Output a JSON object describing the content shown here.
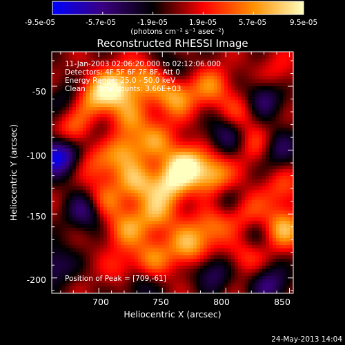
{
  "chart_data": {
    "type": "heatmap",
    "title": "Reconstructed RHESSI Image",
    "xlabel": "Heliocentric X (arcsec)",
    "ylabel": "Heliocentric Y (arcsec)",
    "xlim": [
      663,
      853
    ],
    "ylim": [
      -212,
      -23
    ],
    "x_ticks": [
      700,
      750,
      800,
      850
    ],
    "y_ticks": [
      -50,
      -100,
      -150,
      -200
    ],
    "colorbar": {
      "min": -9.5e-05,
      "max": 9.5e-05,
      "tick_labels": [
        "-9.5e-05",
        "-5.7e-05",
        "-1.9e-05",
        "1.9e-05",
        "5.7e-05",
        "9.5e-05"
      ],
      "unit_label": "(photons cm⁻² s⁻¹ asec⁻²)"
    },
    "annotations": [
      "11-Jan-2003 02:06:20.000 to 02:12:06.000",
      "Detectors: 4F 5F 6F 7F 8F, Att 0",
      "Energy Range: 25.0 - 50.0 keV",
      "Clean     Total counts: 3.66E+03"
    ],
    "peak_label": "Position of Peak = [709,-61]",
    "peak_position": [
      709,
      -61
    ],
    "footer_date": "24-May-2013 14:04",
    "grid": false,
    "colormap": [
      "#0000ff",
      "#3a0080",
      "#000000",
      "#ff0000",
      "#ff9000",
      "#ffffc0"
    ],
    "blobs": [
      {
        "x": 712,
        "y": -52,
        "v": 0.85
      },
      {
        "x": 695,
        "y": -60,
        "v": 0.6
      },
      {
        "x": 735,
        "y": -45,
        "v": 0.55
      },
      {
        "x": 760,
        "y": -58,
        "v": 0.7
      },
      {
        "x": 788,
        "y": -50,
        "v": 0.5
      },
      {
        "x": 725,
        "y": -75,
        "v": 0.45
      },
      {
        "x": 680,
        "y": -85,
        "v": 0.55
      },
      {
        "x": 700,
        "y": -110,
        "v": 0.45
      },
      {
        "x": 720,
        "y": -100,
        "v": 0.6
      },
      {
        "x": 745,
        "y": -92,
        "v": 0.5
      },
      {
        "x": 768,
        "y": -112,
        "v": 0.95
      },
      {
        "x": 790,
        "y": -120,
        "v": 0.75
      },
      {
        "x": 755,
        "y": -128,
        "v": 0.7
      },
      {
        "x": 730,
        "y": -125,
        "v": 0.65
      },
      {
        "x": 705,
        "y": -140,
        "v": 0.5
      },
      {
        "x": 745,
        "y": -150,
        "v": 0.6
      },
      {
        "x": 790,
        "y": -160,
        "v": 0.55
      },
      {
        "x": 770,
        "y": -175,
        "v": 0.7
      },
      {
        "x": 722,
        "y": -162,
        "v": 0.55
      },
      {
        "x": 815,
        "y": -148,
        "v": 0.45
      },
      {
        "x": 845,
        "y": -162,
        "v": 0.7
      },
      {
        "x": 815,
        "y": -182,
        "v": 0.45
      },
      {
        "x": 742,
        "y": -185,
        "v": 0.5
      },
      {
        "x": 720,
        "y": -195,
        "v": 0.35
      },
      {
        "x": 822,
        "y": -95,
        "v": 0.35
      },
      {
        "x": 845,
        "y": -130,
        "v": 0.35
      },
      {
        "x": 840,
        "y": -40,
        "v": 0.25
      },
      {
        "x": 810,
        "y": -70,
        "v": 0.35
      },
      {
        "x": 668,
        "y": -104,
        "v": -1.0
      },
      {
        "x": 800,
        "y": -88,
        "v": -0.5
      },
      {
        "x": 830,
        "y": -60,
        "v": -0.55
      },
      {
        "x": 842,
        "y": -100,
        "v": -0.45
      },
      {
        "x": 690,
        "y": -148,
        "v": -0.6
      },
      {
        "x": 730,
        "y": -205,
        "v": -0.45
      },
      {
        "x": 665,
        "y": -190,
        "v": -0.5
      },
      {
        "x": 790,
        "y": -195,
        "v": -0.5
      },
      {
        "x": 835,
        "y": -205,
        "v": -0.55
      },
      {
        "x": 760,
        "y": -35,
        "v": -0.3
      },
      {
        "x": 800,
        "y": -140,
        "v": -0.35
      },
      {
        "x": 700,
        "y": -90,
        "v": -0.3
      },
      {
        "x": 820,
        "y": -168,
        "v": -0.35
      },
      {
        "x": 675,
        "y": -60,
        "v": -0.35
      }
    ]
  }
}
